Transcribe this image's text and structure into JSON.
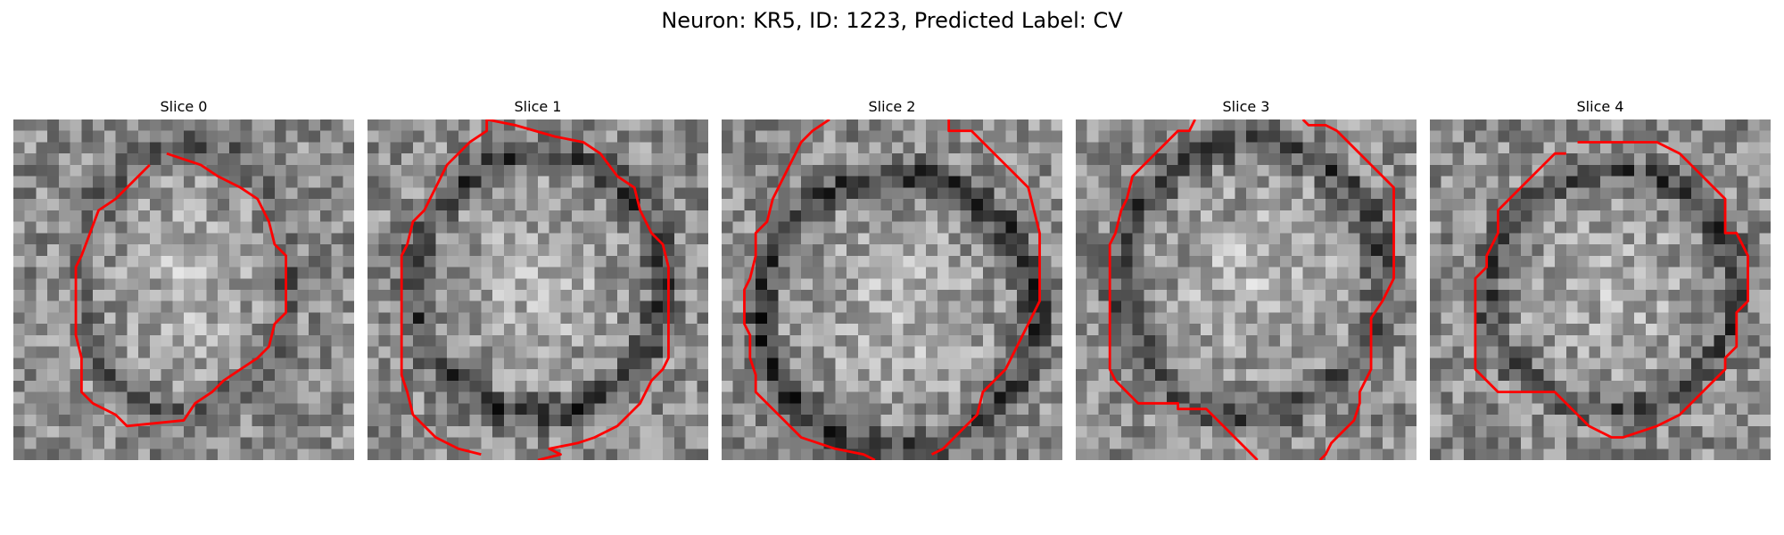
{
  "figure": {
    "title": "Neuron: KR5, ID: 1223, Predicted Label: CV",
    "contour_color": "#ff0000"
  },
  "panels": [
    {
      "title": "Slice 0",
      "image": {
        "grid": 30,
        "blob_center": [
          15,
          14
        ],
        "blob_radius": [
          9,
          12
        ],
        "ring_darkness": 0.25,
        "seed": 11
      },
      "contour": [
        [
          13.5,
          3
        ],
        [
          16.5,
          4
        ],
        [
          18,
          5
        ],
        [
          20,
          6
        ],
        [
          21.5,
          7
        ],
        [
          22.5,
          9
        ],
        [
          23,
          11
        ],
        [
          24,
          12
        ],
        [
          24,
          17
        ],
        [
          23,
          18
        ],
        [
          22.5,
          20
        ],
        [
          21.5,
          21
        ],
        [
          20,
          22
        ],
        [
          18.5,
          23
        ],
        [
          17.5,
          24
        ],
        [
          16,
          25
        ],
        [
          15,
          26.5
        ],
        [
          10,
          27
        ],
        [
          9,
          26
        ],
        [
          7,
          25
        ],
        [
          6,
          24
        ],
        [
          6,
          21
        ],
        [
          5.5,
          19
        ],
        [
          5.5,
          13
        ],
        [
          6,
          12
        ],
        [
          7.5,
          8
        ],
        [
          9,
          7
        ],
        [
          11,
          5
        ],
        [
          12,
          4
        ]
      ]
    },
    {
      "title": "Slice 1",
      "image": {
        "grid": 30,
        "blob_center": [
          15,
          14.5
        ],
        "blob_radius": [
          11,
          11.5
        ],
        "ring_darkness": 0.45,
        "seed": 23
      },
      "contour": [
        [
          10.5,
          0
        ],
        [
          13,
          0.5
        ],
        [
          16.5,
          1.5
        ],
        [
          19,
          2
        ],
        [
          20.5,
          3
        ],
        [
          22,
          5
        ],
        [
          23.5,
          6
        ],
        [
          24,
          8
        ],
        [
          25,
          10
        ],
        [
          26,
          11
        ],
        [
          26.5,
          13
        ],
        [
          26.5,
          21
        ],
        [
          26,
          22
        ],
        [
          25,
          23
        ],
        [
          24.5,
          24
        ],
        [
          24,
          25
        ],
        [
          23,
          26
        ],
        [
          22,
          27
        ],
        [
          20,
          28
        ],
        [
          18.5,
          28.5
        ],
        [
          16,
          29
        ],
        [
          17,
          29.5
        ],
        [
          15,
          30
        ],
        "M",
        [
          10,
          29.5
        ],
        [
          8,
          29
        ],
        [
          6,
          28
        ],
        [
          5,
          27
        ],
        [
          4,
          26
        ],
        [
          3.5,
          24
        ],
        [
          3,
          22.5
        ],
        [
          3,
          21
        ],
        [
          3,
          19
        ],
        [
          3,
          14
        ],
        [
          3,
          12
        ],
        [
          3.5,
          11
        ],
        [
          4,
          9
        ],
        [
          5,
          8
        ],
        [
          6,
          6
        ],
        [
          7,
          4
        ],
        [
          8,
          3
        ],
        [
          9,
          2
        ],
        [
          10.5,
          1
        ],
        [
          10.5,
          0
        ]
      ]
    },
    {
      "title": "Slice 2",
      "image": {
        "grid": 30,
        "blob_center": [
          15.5,
          17
        ],
        "blob_radius": [
          12,
          12
        ],
        "ring_darkness": 0.55,
        "seed": 37
      },
      "contour": [
        [
          9.5,
          0
        ],
        [
          8,
          1
        ],
        [
          7,
          2
        ],
        [
          6.5,
          3
        ],
        [
          6,
          4
        ],
        [
          5,
          6
        ],
        [
          4.5,
          7
        ],
        [
          4,
          9
        ],
        [
          3,
          10
        ],
        [
          3,
          12
        ],
        [
          2.5,
          14
        ],
        [
          2,
          15
        ],
        [
          2,
          18
        ],
        [
          2.5,
          19
        ],
        [
          2.5,
          21
        ],
        [
          3,
          22.5
        ],
        [
          3,
          24
        ],
        [
          4,
          25
        ],
        [
          5,
          26
        ],
        [
          6,
          27
        ],
        [
          7,
          28
        ],
        [
          8.5,
          28.5
        ],
        [
          10,
          29
        ],
        [
          12.5,
          29.5
        ],
        [
          13.5,
          30
        ],
        "M",
        [
          18.5,
          29.5
        ],
        [
          19.5,
          29
        ],
        [
          20.5,
          28
        ],
        [
          21.5,
          27
        ],
        [
          22.5,
          26
        ],
        [
          23,
          24
        ],
        [
          24,
          23
        ],
        [
          25,
          22
        ],
        [
          26,
          20
        ],
        [
          27,
          18
        ],
        [
          27.5,
          17
        ],
        [
          28,
          16
        ],
        [
          28,
          10
        ],
        [
          27.5,
          8
        ],
        [
          27,
          6
        ],
        [
          26,
          5
        ],
        [
          25,
          4
        ],
        [
          24,
          3
        ],
        [
          23,
          2
        ],
        [
          22,
          1
        ],
        [
          20,
          1
        ],
        [
          20,
          0
        ]
      ]
    },
    {
      "title": "Slice 3",
      "image": {
        "grid": 30,
        "blob_center": [
          15.5,
          14
        ],
        "blob_radius": [
          11.5,
          12
        ],
        "ring_darkness": 0.4,
        "seed": 51
      },
      "contour": [
        [
          10.5,
          0
        ],
        [
          10,
          1
        ],
        [
          9,
          1
        ],
        [
          8,
          2
        ],
        [
          7,
          3
        ],
        [
          6,
          4
        ],
        [
          5,
          5
        ],
        [
          4.5,
          7
        ],
        [
          4,
          8
        ],
        [
          3.5,
          10
        ],
        [
          3,
          11
        ],
        [
          3,
          13
        ],
        [
          3,
          22
        ],
        [
          3.5,
          23
        ],
        [
          4.5,
          24
        ],
        [
          5.5,
          25
        ],
        [
          6.5,
          25
        ],
        [
          7,
          25
        ],
        [
          8,
          25
        ],
        [
          9,
          25
        ],
        [
          9,
          25.5
        ],
        [
          11.5,
          25.5
        ],
        [
          12.5,
          26.5
        ],
        [
          13.5,
          27.5
        ],
        [
          14.5,
          28.5
        ],
        [
          15.5,
          29.5
        ],
        [
          16,
          30
        ],
        "M",
        [
          21.5,
          30
        ],
        [
          22,
          29.5
        ],
        [
          22.5,
          28.5
        ],
        [
          23.5,
          27.5
        ],
        [
          24.5,
          26.5
        ],
        [
          25,
          25
        ],
        [
          25,
          24
        ],
        [
          25.5,
          23
        ],
        [
          26,
          22
        ],
        [
          26,
          17.5
        ],
        [
          27,
          16
        ],
        [
          27.5,
          15
        ],
        [
          28,
          14
        ],
        [
          28,
          6
        ],
        [
          27,
          5
        ],
        [
          26,
          4
        ],
        [
          25,
          3
        ],
        [
          24,
          2
        ],
        [
          23,
          1
        ],
        [
          22,
          0.5
        ],
        [
          20.5,
          0.5
        ],
        [
          20,
          0
        ]
      ]
    },
    {
      "title": "Slice 4",
      "image": {
        "grid": 30,
        "blob_center": [
          16,
          15
        ],
        "blob_radius": [
          11,
          10.5
        ],
        "ring_darkness": 0.4,
        "seed": 67
      },
      "contour": [
        [
          13,
          2
        ],
        [
          16,
          2
        ],
        [
          17,
          2
        ],
        [
          19,
          2
        ],
        [
          20,
          2
        ],
        [
          22,
          3
        ],
        [
          23,
          4
        ],
        [
          24,
          5
        ],
        [
          25,
          6
        ],
        [
          26,
          7
        ],
        [
          26,
          8
        ],
        [
          26,
          10
        ],
        [
          27,
          10
        ],
        [
          28,
          12
        ],
        [
          28,
          14
        ],
        [
          28,
          16
        ],
        [
          27,
          17
        ],
        [
          27,
          18
        ],
        [
          27,
          20
        ],
        [
          26,
          21
        ],
        [
          26,
          22
        ],
        [
          25,
          23
        ],
        [
          24,
          24
        ],
        [
          23,
          25
        ],
        [
          22,
          26
        ],
        [
          20,
          27
        ],
        [
          17,
          28
        ],
        [
          16,
          28
        ],
        [
          14,
          27
        ],
        [
          13,
          26
        ],
        [
          12,
          25
        ],
        [
          11,
          24
        ],
        [
          9,
          24
        ],
        [
          8,
          24
        ],
        [
          7,
          24
        ],
        [
          6,
          24
        ],
        [
          5,
          23
        ],
        [
          4,
          22
        ],
        [
          4,
          21
        ],
        [
          4,
          20
        ],
        [
          4,
          19
        ],
        [
          4,
          18
        ],
        [
          4,
          16
        ],
        [
          4,
          15
        ],
        [
          4,
          14
        ],
        [
          5,
          13
        ],
        [
          5,
          12
        ],
        [
          6,
          10
        ],
        [
          6,
          9
        ],
        [
          6,
          8
        ],
        [
          7,
          7
        ],
        [
          8,
          6
        ],
        [
          9,
          5
        ],
        [
          10,
          4
        ],
        [
          11,
          3
        ],
        [
          12,
          3
        ]
      ]
    }
  ]
}
